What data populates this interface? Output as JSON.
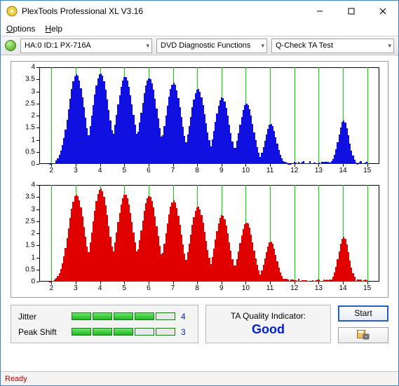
{
  "window": {
    "title": "PlexTools Professional XL V3.16",
    "menu": {
      "options": "Options",
      "help": "Help"
    },
    "status": "Ready"
  },
  "toolbar": {
    "device": "HA:0 ID:1   PX-716A",
    "function_group": "DVD Diagnostic Functions",
    "test": "Q-Check TA Test"
  },
  "charts": {
    "ymax": 4,
    "yticks": [
      0,
      0.5,
      1,
      1.5,
      2,
      2.5,
      3,
      3.5,
      4
    ],
    "xticks": [
      2,
      3,
      4,
      5,
      6,
      7,
      8,
      9,
      10,
      11,
      12,
      13,
      14,
      15
    ],
    "xmin": 1.5,
    "xmax": 15.5,
    "grid_color": "#00e000",
    "top": {
      "bar_color": "#1010e0",
      "peaks": [
        {
          "c": 3,
          "h": 3.7,
          "w": 0.85
        },
        {
          "c": 4,
          "h": 3.75,
          "w": 0.85
        },
        {
          "c": 5,
          "h": 3.6,
          "w": 0.85
        },
        {
          "c": 6,
          "h": 3.55,
          "w": 0.85
        },
        {
          "c": 7,
          "h": 3.35,
          "w": 0.8
        },
        {
          "c": 8,
          "h": 3.1,
          "w": 0.8
        },
        {
          "c": 9,
          "h": 2.75,
          "w": 0.75
        },
        {
          "c": 10,
          "h": 2.5,
          "w": 0.72
        },
        {
          "c": 11,
          "h": 1.65,
          "w": 0.6
        },
        {
          "c": 14,
          "h": 1.8,
          "w": 0.55
        }
      ],
      "floor_noise": 0.12
    },
    "bottom": {
      "bar_color": "#e00000",
      "peaks": [
        {
          "c": 3,
          "h": 3.6,
          "w": 0.85
        },
        {
          "c": 4,
          "h": 3.85,
          "w": 0.85
        },
        {
          "c": 5,
          "h": 3.6,
          "w": 0.85
        },
        {
          "c": 6,
          "h": 3.55,
          "w": 0.85
        },
        {
          "c": 7,
          "h": 3.35,
          "w": 0.8
        },
        {
          "c": 8,
          "h": 3.1,
          "w": 0.8
        },
        {
          "c": 9,
          "h": 2.75,
          "w": 0.75
        },
        {
          "c": 10,
          "h": 2.45,
          "w": 0.72
        },
        {
          "c": 11,
          "h": 1.65,
          "w": 0.6
        },
        {
          "c": 14,
          "h": 1.85,
          "w": 0.55
        }
      ],
      "floor_noise": 0.12
    }
  },
  "metrics": {
    "jitter": {
      "label": "Jitter",
      "value": 4,
      "max": 5
    },
    "peakshift": {
      "label": "Peak Shift",
      "value": 3,
      "max": 5
    }
  },
  "quality": {
    "label": "TA Quality Indicator:",
    "value": "Good"
  },
  "actions": {
    "start": "Start"
  }
}
